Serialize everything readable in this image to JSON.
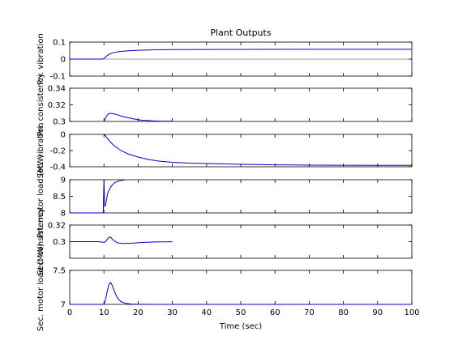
{
  "figure": {
    "background": "#ffffff",
    "line_color": "#0000cc",
    "zero_line_color": "#808080",
    "axes_color": "#000000"
  },
  "chart_data": {
    "type": "line",
    "title": "Plant Outputs",
    "xlabel": "Time (sec)",
    "xlim": [
      0,
      100
    ],
    "xticks": [
      "0",
      "10",
      "20",
      "30",
      "40",
      "50",
      "60",
      "70",
      "80",
      "90",
      "100"
    ],
    "subplots": [
      {
        "ylabel": "Pri. vibration",
        "ylim": [
          -0.1,
          0.1
        ],
        "yticks": [
          "0.1",
          "0",
          "-0.1"
        ],
        "ytick_values": [
          0.1,
          0,
          -0.1
        ],
        "zero_line": true,
        "series": [
          {
            "x": [
              0,
              9.5,
              10,
              10.5,
              11,
              12,
              13,
              15,
              17,
              20,
              25,
              30,
              50,
              75,
              100
            ],
            "y": [
              0,
              0,
              0.004,
              0.012,
              0.022,
              0.033,
              0.039,
              0.045,
              0.049,
              0.052,
              0.055,
              0.056,
              0.057,
              0.058,
              0.058
            ]
          }
        ]
      },
      {
        "ylabel": "Pri. consistency",
        "ylim": [
          0.3,
          0.34
        ],
        "yticks": [
          "0.34",
          "0.32",
          "0.3"
        ],
        "ytick_values": [
          0.34,
          0.32,
          0.3
        ],
        "zero_line": false,
        "series": [
          {
            "x": [
              10,
              10.5,
              11,
              11.5,
              12,
              13,
              14,
              15,
              17,
              19,
              21,
              24,
              27,
              30
            ],
            "y": [
              0.3,
              0.304,
              0.308,
              0.3095,
              0.3097,
              0.309,
              0.308,
              0.3065,
              0.3045,
              0.3028,
              0.3015,
              0.3007,
              0.3003,
              0.3002
            ]
          }
        ]
      },
      {
        "ylabel": "Sec. vibration",
        "ylim": [
          -0.4,
          0
        ],
        "yticks": [
          "0",
          "-0.2",
          "-0.4"
        ],
        "ytick_values": [
          0,
          -0.2,
          -0.4
        ],
        "zero_line": false,
        "series": [
          {
            "x": [
              10,
              10.5,
              11,
              12,
              13,
              14,
              15,
              17,
              20,
              23,
              26,
              30,
              35,
              40,
              45,
              50,
              55,
              60,
              65,
              70,
              80,
              90,
              100
            ],
            "y": [
              0,
              -0.02,
              -0.05,
              -0.1,
              -0.14,
              -0.17,
              -0.2,
              -0.24,
              -0.28,
              -0.31,
              -0.33,
              -0.345,
              -0.355,
              -0.36,
              -0.365,
              -0.37,
              -0.373,
              -0.376,
              -0.378,
              -0.38,
              -0.381,
              -0.382,
              -0.382
            ]
          }
        ]
      },
      {
        "ylabel": "Pri. motor load (MW)",
        "ylim": [
          8,
          9
        ],
        "yticks": [
          "9",
          "8.5",
          "8"
        ],
        "ytick_values": [
          9,
          8.5,
          8
        ],
        "zero_line": false,
        "series": [
          {
            "x": [
              0,
              9.8,
              10,
              10.2,
              10.4,
              10.6,
              10.8,
              11,
              11.2,
              11.6,
              12,
              12.5,
              13,
              14,
              15,
              16
            ],
            "y": [
              8,
              8,
              9,
              8.2,
              8.22,
              8.3,
              8.42,
              8.55,
              8.62,
              8.7,
              8.78,
              8.85,
              8.9,
              8.95,
              8.98,
              8.99
            ]
          }
        ]
      },
      {
        "ylabel": "Sec. consistency",
        "ylim": [
          0.28,
          0.32
        ],
        "yticks": [
          "0.32",
          "0.3"
        ],
        "ytick_values": [
          0.32,
          0.3
        ],
        "zero_line": false,
        "series": [
          {
            "x": [
              0,
              8,
              9.5,
              10,
              10.5,
              11,
              11.5,
              12,
              13,
              14,
              15,
              16,
              18,
              20,
              22,
              25,
              28,
              30
            ],
            "y": [
              0.3,
              0.3,
              0.2995,
              0.299,
              0.3,
              0.303,
              0.3055,
              0.305,
              0.301,
              0.2985,
              0.298,
              0.2978,
              0.2981,
              0.2987,
              0.2992,
              0.2996,
              0.2998,
              0.2999
            ]
          }
        ]
      },
      {
        "ylabel": "Sec. motor load (MW)",
        "ylim": [
          7,
          7.5
        ],
        "yticks": [
          "7.5",
          "7"
        ],
        "ytick_values": [
          7.5,
          7
        ],
        "zero_line": false,
        "series": [
          {
            "x": [
              0,
              10,
              10.5,
              11,
              11.5,
              12,
              12.5,
              13,
              13.5,
              14,
              15,
              16,
              17,
              18,
              20,
              25,
              100
            ],
            "y": [
              7,
              7,
              7.08,
              7.2,
              7.3,
              7.32,
              7.27,
              7.2,
              7.14,
              7.09,
              7.04,
              7.02,
              7.01,
              7.005,
              7.002,
              7.0,
              7.0
            ]
          }
        ]
      }
    ]
  }
}
